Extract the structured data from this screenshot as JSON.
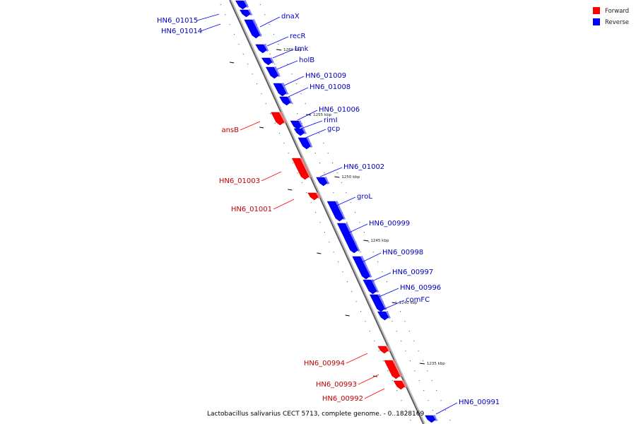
{
  "legend": {
    "forward": {
      "label": "Forward",
      "color": "#ff0000"
    },
    "reverse": {
      "label": "Reverse",
      "color": "#0000ff"
    }
  },
  "caption": "Lactobacillus salivarius CECT 5713, complete genome. - 0..1828169",
  "ticks": [
    "1260 kbp",
    "1255 kbp",
    "1250 kbp",
    "1245 kbp",
    "1240 kbp",
    "1235 kbp"
  ],
  "genes": [
    {
      "name": "HN6_01015",
      "strand": "reverse"
    },
    {
      "name": "HN6_01014",
      "strand": "reverse"
    },
    {
      "name": "dnaX",
      "strand": "reverse"
    },
    {
      "name": "recR",
      "strand": "reverse"
    },
    {
      "name": "tmk",
      "strand": "reverse"
    },
    {
      "name": "holB",
      "strand": "reverse"
    },
    {
      "name": "HN6_01009",
      "strand": "reverse"
    },
    {
      "name": "HN6_01008",
      "strand": "reverse"
    },
    {
      "name": "HN6_01006",
      "strand": "reverse"
    },
    {
      "name": "ansB",
      "strand": "forward"
    },
    {
      "name": "rimI",
      "strand": "reverse"
    },
    {
      "name": "gcp",
      "strand": "reverse"
    },
    {
      "name": "HN6_01003",
      "strand": "forward"
    },
    {
      "name": "HN6_01002",
      "strand": "reverse"
    },
    {
      "name": "HN6_01001",
      "strand": "forward"
    },
    {
      "name": "groL",
      "strand": "reverse"
    },
    {
      "name": "HN6_00999",
      "strand": "reverse"
    },
    {
      "name": "HN6_00998",
      "strand": "reverse"
    },
    {
      "name": "HN6_00997",
      "strand": "reverse"
    },
    {
      "name": "HN6_00996",
      "strand": "reverse"
    },
    {
      "name": "comFC",
      "strand": "reverse"
    },
    {
      "name": "HN6_00994",
      "strand": "forward"
    },
    {
      "name": "HN6_00993",
      "strand": "forward"
    },
    {
      "name": "HN6_00992",
      "strand": "forward"
    },
    {
      "name": "HN6_00991",
      "strand": "reverse"
    }
  ]
}
